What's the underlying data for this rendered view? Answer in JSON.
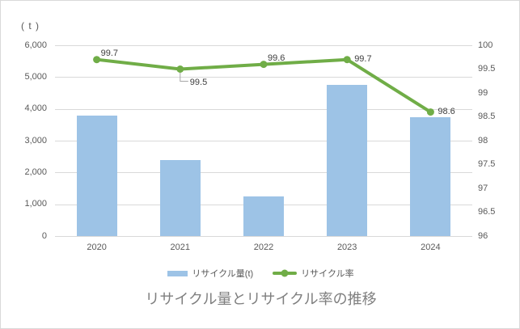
{
  "chart_data": {
    "type": "combo",
    "title": "リサイクル量とリサイクル率の推移",
    "categories": [
      "2020",
      "2021",
      "2022",
      "2023",
      "2024"
    ],
    "series": [
      {
        "name": "リサイクル量(t)",
        "type": "bar",
        "axis": "left",
        "color": "#9DC3E6",
        "values": [
          3800,
          2400,
          1250,
          4750,
          3750
        ]
      },
      {
        "name": "リサイクル率",
        "type": "line",
        "axis": "right",
        "color": "#70AD47",
        "values": [
          99.7,
          99.5,
          99.6,
          99.7,
          98.6
        ],
        "point_labels": [
          "99.7",
          "99.5",
          "99.6",
          "99.7",
          "98.6"
        ],
        "label_positions": [
          "above",
          "below",
          "above",
          "right",
          "right"
        ]
      }
    ],
    "left_axis": {
      "unit": "( t )",
      "ylim": [
        0,
        6000
      ],
      "tick_step": 1000,
      "tick_labels": [
        "6,000",
        "5,000",
        "4,000",
        "3,000",
        "2,000",
        "1,000",
        "0"
      ]
    },
    "right_axis": {
      "ylim": [
        96,
        100
      ],
      "tick_step": 0.5,
      "tick_labels": [
        "100",
        "99.5",
        "99",
        "98.5",
        "98",
        "97.5",
        "97",
        "96.5",
        "96"
      ]
    },
    "grid": true,
    "legend_position": "bottom",
    "colors": {
      "gridline": "#D9D9D9",
      "axis_text": "#595959",
      "data_label": "#404040",
      "title_text": "#7F7F7F",
      "leader_line": "#A6A6A6",
      "border": "#D9D9D9",
      "background": "#FFFFFF"
    }
  }
}
